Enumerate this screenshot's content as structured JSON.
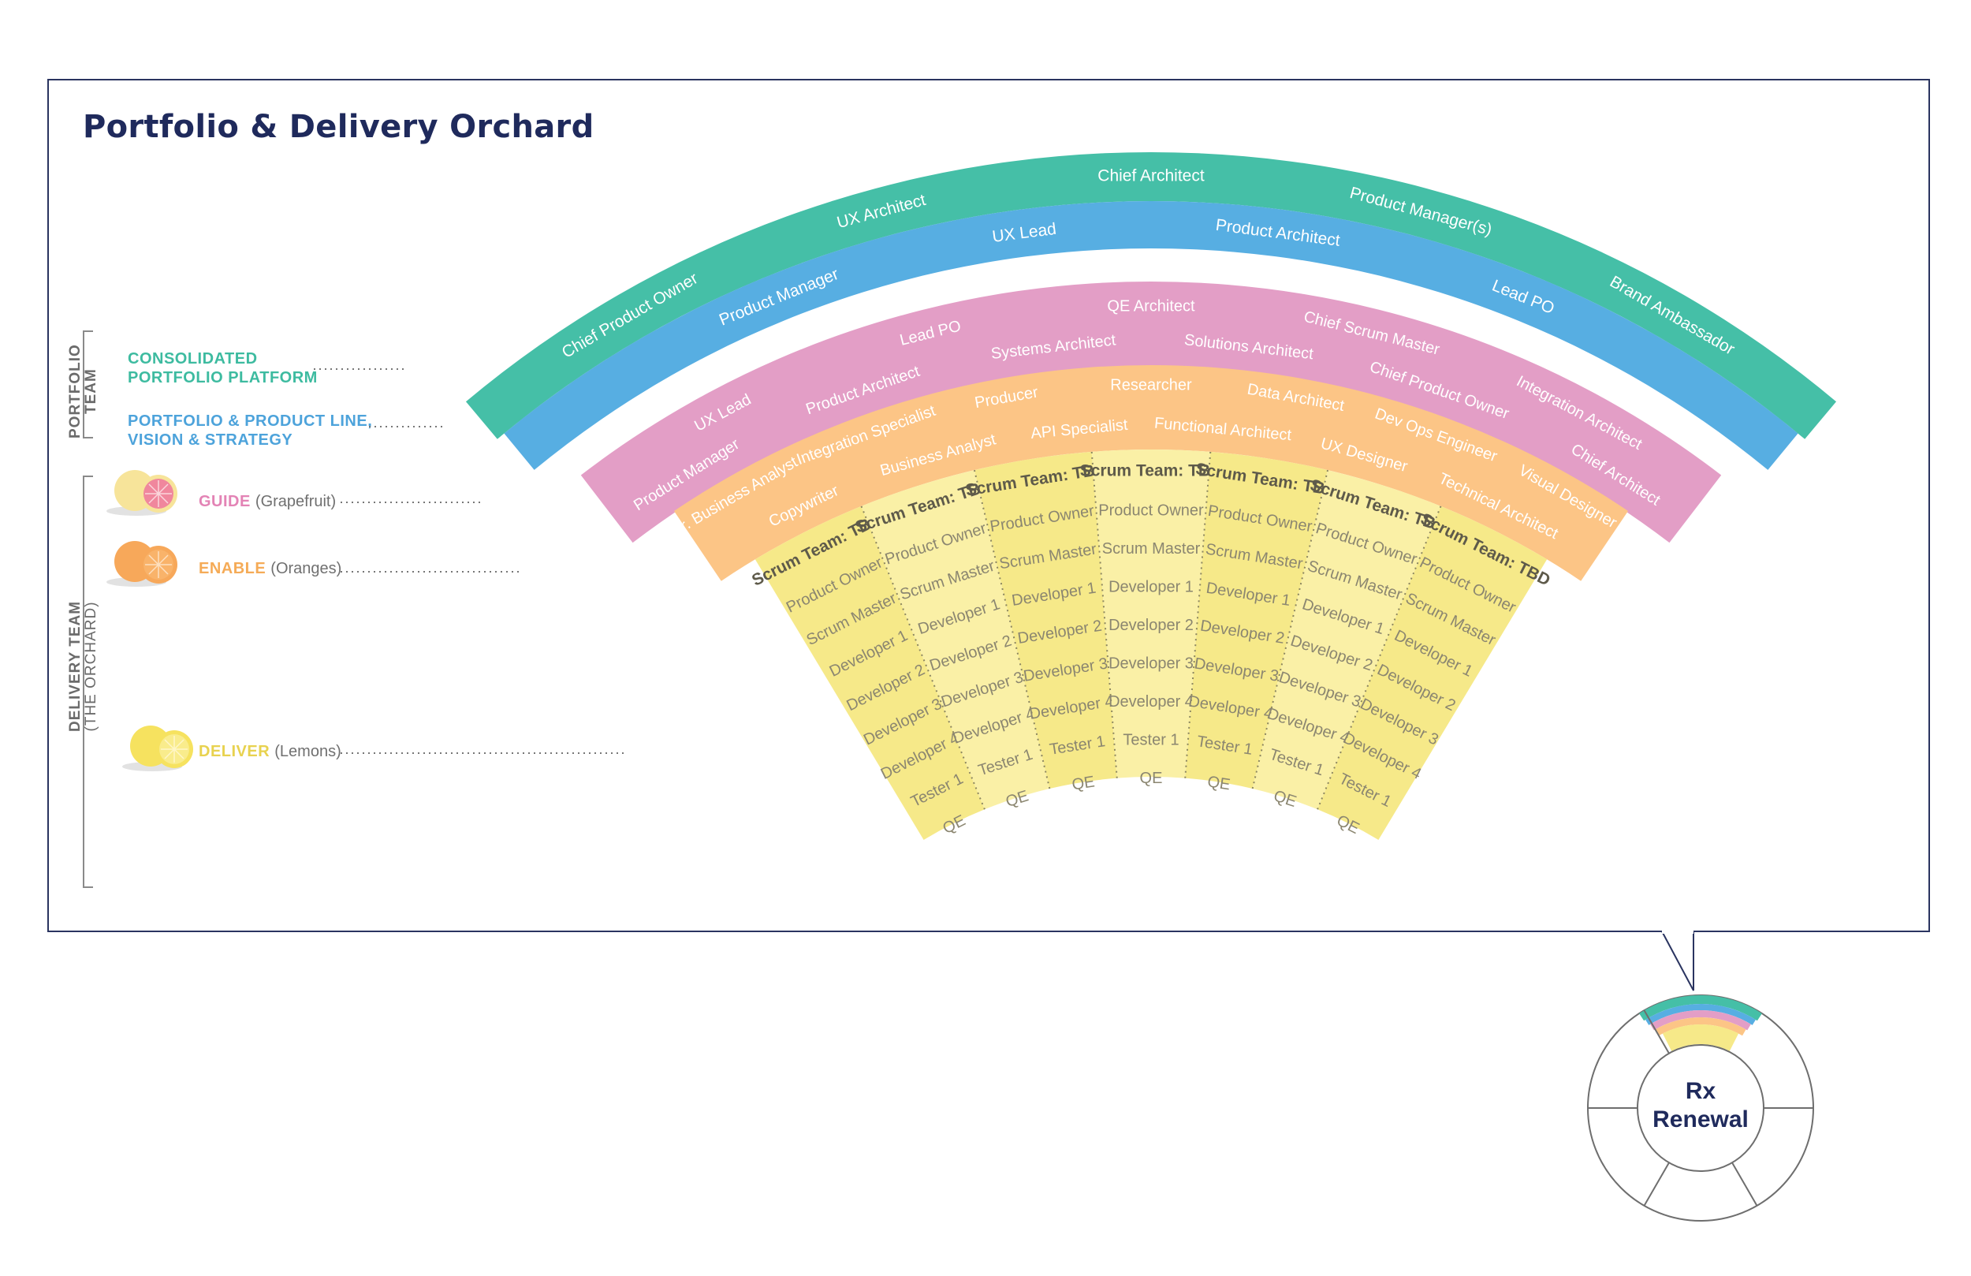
{
  "title": "Portfolio & Delivery Orchard",
  "side": {
    "portfolio_team": [
      "PORTFOLIO",
      "TEAM"
    ],
    "delivery_team": [
      "DELIVERY TEAM",
      "(THE ORCHARD)"
    ]
  },
  "legend": {
    "consolidated": [
      "CONSOLIDATED",
      "PORTFOLIO PLATFORM"
    ],
    "vision": [
      "PORTFOLIO & PRODUCT LINE,",
      "VISION & STRATEGY"
    ],
    "guide": {
      "label": "GUIDE",
      "paren": "(Grapefruit)"
    },
    "enable": {
      "label": "ENABLE",
      "paren": "(Oranges)"
    },
    "deliver": {
      "label": "DELIVER",
      "paren": "(Lemons)"
    }
  },
  "colors": {
    "teal": "#45bfa7",
    "blue": "#57aee2",
    "pink": "#e39ec6",
    "orange": "#fcc586",
    "yellow_light": "#faf0a6",
    "yellow": "#f6e989",
    "frame": "#2a3460",
    "title": "#1f2a5c"
  },
  "bands": {
    "teal": [
      "Chief Product Owner",
      "UX Architect",
      "Chief Architect",
      "Product Manager(s)",
      "Brand Ambassador"
    ],
    "blue": [
      "Product Manager",
      "UX Lead",
      "Product Architect",
      "Lead PO"
    ],
    "pink_outer": [
      "UX Lead",
      "Lead PO",
      "QE Architect",
      "Chief Scrum Master",
      "Integration Architect"
    ],
    "pink_inner": [
      "Product Manager",
      "Product Architect",
      "Systems Architect",
      "Solutions Architect",
      "Chief Product Owner",
      "Chief Architect"
    ],
    "orange_outer": [
      "Sr. Business Analyst",
      "Integration Specialist",
      "Producer",
      "Researcher",
      "Data Architect",
      "Dev Ops Engineer",
      "Visual Designer"
    ],
    "orange_inner": [
      "Copywriter",
      "Business Analyst",
      "API Specialist",
      "Functional Architect",
      "UX Designer",
      "Technical Architect"
    ]
  },
  "teams": [
    {
      "title": "Scrum Team: TBD",
      "members": [
        "Product Owner",
        "Scrum Master",
        "Developer 1",
        "Developer 2",
        "Developer 3",
        "Developer 4",
        "Tester 1",
        "QE"
      ]
    },
    {
      "title": "Scrum Team: TBD",
      "members": [
        "Product Owner",
        "Scrum Master",
        "Developer 1",
        "Developer 2",
        "Developer 3",
        "Developer 4",
        "Tester 1",
        "QE"
      ]
    },
    {
      "title": "Scrum Team: TBD",
      "members": [
        "Product Owner",
        "Scrum Master",
        "Developer 1",
        "Developer 2",
        "Developer 3",
        "Developer 4",
        "Tester 1",
        "QE"
      ]
    },
    {
      "title": "Scrum Team: TBD",
      "members": [
        "Product Owner",
        "Scrum Master",
        "Developer 1",
        "Developer 2",
        "Developer 3",
        "Developer 4",
        "Tester 1",
        "QE"
      ]
    },
    {
      "title": "Scrum Team: TBD",
      "members": [
        "Product Owner",
        "Scrum Master",
        "Developer 1",
        "Developer 2",
        "Developer 3",
        "Developer 4",
        "Tester 1",
        "QE"
      ]
    },
    {
      "title": "Scrum Team: TBD",
      "members": [
        "Product Owner",
        "Scrum Master",
        "Developer 1",
        "Developer 2",
        "Developer 3",
        "Developer 4",
        "Tester 1",
        "QE"
      ]
    },
    {
      "title": "Scrum Team: TBD",
      "members": [
        "Product Owner",
        "Scrum Master",
        "Developer 1",
        "Developer 2",
        "Developer 3",
        "Developer 4",
        "Tester 1",
        "QE"
      ]
    }
  ],
  "wheel": {
    "label": [
      "Rx",
      "Renewal"
    ]
  }
}
